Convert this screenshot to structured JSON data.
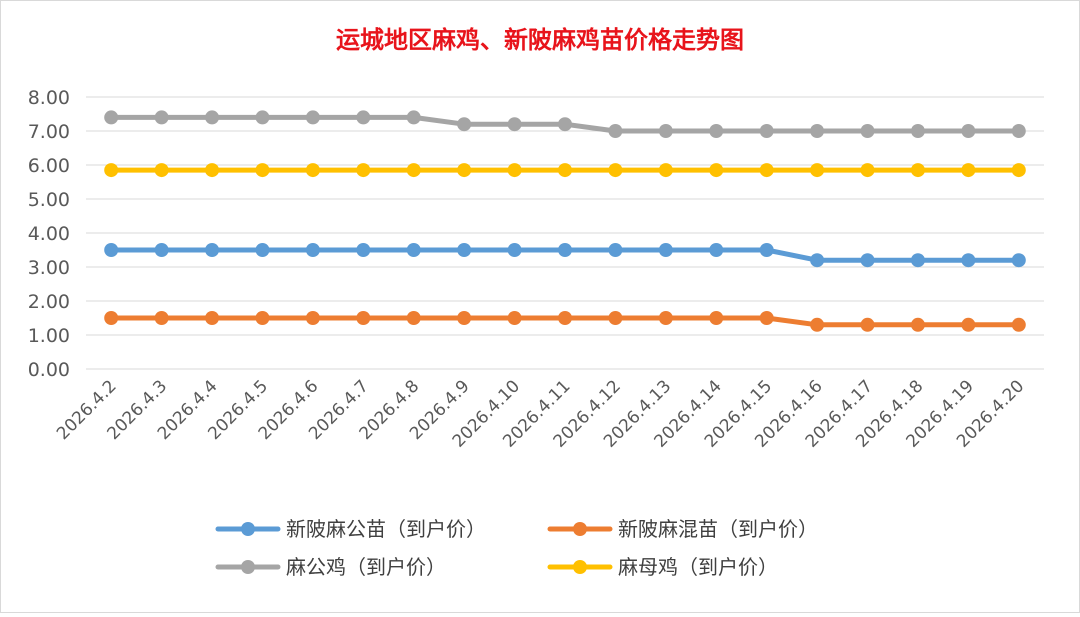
{
  "chart_data": {
    "type": "line",
    "title": "运城地区麻鸡、新陂麻鸡苗价格走势图",
    "xlabel": "",
    "ylabel": "",
    "ylim": [
      0,
      8
    ],
    "yticks": [
      "0.00",
      "1.00",
      "2.00",
      "3.00",
      "4.00",
      "5.00",
      "6.00",
      "7.00",
      "8.00"
    ],
    "grid": true,
    "legend": "bottom",
    "categories": [
      "2026.4.2",
      "2026.4.3",
      "2026.4.4",
      "2026.4.5",
      "2026.4.6",
      "2026.4.7",
      "2026.4.8",
      "2026.4.9",
      "2026.4.10",
      "2026.4.11",
      "2026.4.12",
      "2026.4.13",
      "2026.4.14",
      "2026.4.15",
      "2026.4.16",
      "2026.4.17",
      "2026.4.18",
      "2026.4.19",
      "2026.4.20"
    ],
    "series": [
      {
        "name": "新陂麻公苗（到户价）",
        "color": "#5b9bd5",
        "values": [
          3.5,
          3.5,
          3.5,
          3.5,
          3.5,
          3.5,
          3.5,
          3.5,
          3.5,
          3.5,
          3.5,
          3.5,
          3.5,
          3.5,
          3.2,
          3.2,
          3.2,
          3.2,
          3.2
        ]
      },
      {
        "name": "新陂麻混苗（到户价）",
        "color": "#ed7d31",
        "values": [
          1.5,
          1.5,
          1.5,
          1.5,
          1.5,
          1.5,
          1.5,
          1.5,
          1.5,
          1.5,
          1.5,
          1.5,
          1.5,
          1.5,
          1.3,
          1.3,
          1.3,
          1.3,
          1.3
        ]
      },
      {
        "name": "麻公鸡（到户价）",
        "color": "#a5a5a5",
        "values": [
          7.4,
          7.4,
          7.4,
          7.4,
          7.4,
          7.4,
          7.4,
          7.2,
          7.2,
          7.2,
          7.0,
          7.0,
          7.0,
          7.0,
          7.0,
          7.0,
          7.0,
          7.0,
          7.0
        ]
      },
      {
        "name": "麻母鸡（到户价）",
        "color": "#ffc000",
        "values": [
          5.85,
          5.85,
          5.85,
          5.85,
          5.85,
          5.85,
          5.85,
          5.85,
          5.85,
          5.85,
          5.85,
          5.85,
          5.85,
          5.85,
          5.85,
          5.85,
          5.85,
          5.85,
          5.85
        ]
      }
    ]
  }
}
